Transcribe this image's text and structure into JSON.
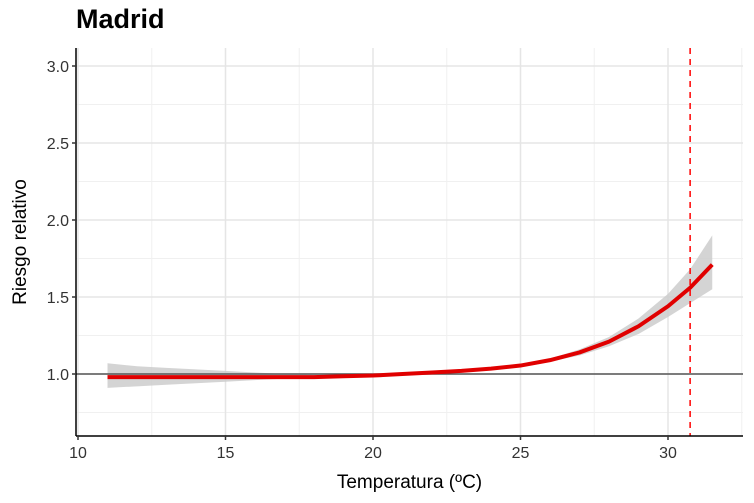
{
  "title": "Madrid",
  "chart_data": {
    "type": "line",
    "title": "Madrid",
    "xlabel": "Temperatura (ºC)",
    "ylabel": "Riesgo relativo",
    "xlim": [
      9.9,
      32.6
    ],
    "ylim": [
      0.6,
      3.12
    ],
    "x_ticks": [
      10,
      15,
      20,
      25,
      30
    ],
    "x_tick_labels": [
      "10",
      "15",
      "20",
      "25",
      "30"
    ],
    "y_ticks": [
      1.0,
      1.5,
      2.0,
      2.5,
      3.0
    ],
    "y_tick_labels": [
      "1.0",
      "1.5",
      "2.0",
      "2.5",
      "3.0"
    ],
    "grid": true,
    "reference_line_y": 1.0,
    "threshold_line_x": 30.75,
    "series": [
      {
        "name": "Riesgo relativo",
        "color": "#e00000",
        "x": [
          11,
          12,
          13,
          14,
          15,
          16,
          17,
          18,
          19,
          20,
          21,
          22,
          23,
          24,
          25,
          26,
          27,
          28,
          29,
          30,
          30.75,
          31.5
        ],
        "values": [
          0.98,
          0.98,
          0.98,
          0.98,
          0.98,
          0.98,
          0.98,
          0.98,
          0.985,
          0.99,
          1.0,
          1.01,
          1.02,
          1.035,
          1.055,
          1.09,
          1.14,
          1.21,
          1.31,
          1.44,
          1.56,
          1.71
        ],
        "lower": [
          0.91,
          0.92,
          0.93,
          0.94,
          0.95,
          0.96,
          0.97,
          0.975,
          0.98,
          0.985,
          0.995,
          1.005,
          1.015,
          1.03,
          1.05,
          1.08,
          1.12,
          1.18,
          1.26,
          1.37,
          1.46,
          1.55
        ],
        "upper": [
          1.07,
          1.05,
          1.04,
          1.03,
          1.02,
          1.01,
          1.0,
          0.995,
          0.99,
          0.995,
          1.005,
          1.015,
          1.025,
          1.04,
          1.06,
          1.1,
          1.16,
          1.24,
          1.36,
          1.52,
          1.68,
          1.9
        ]
      }
    ]
  },
  "colors": {
    "line": "#e00000",
    "ribbon": "#cccccc",
    "threshold": "#ff0000",
    "reference": "#555555",
    "grid_major": "#e5e5e5",
    "grid_minor": "#f0f0f0"
  }
}
